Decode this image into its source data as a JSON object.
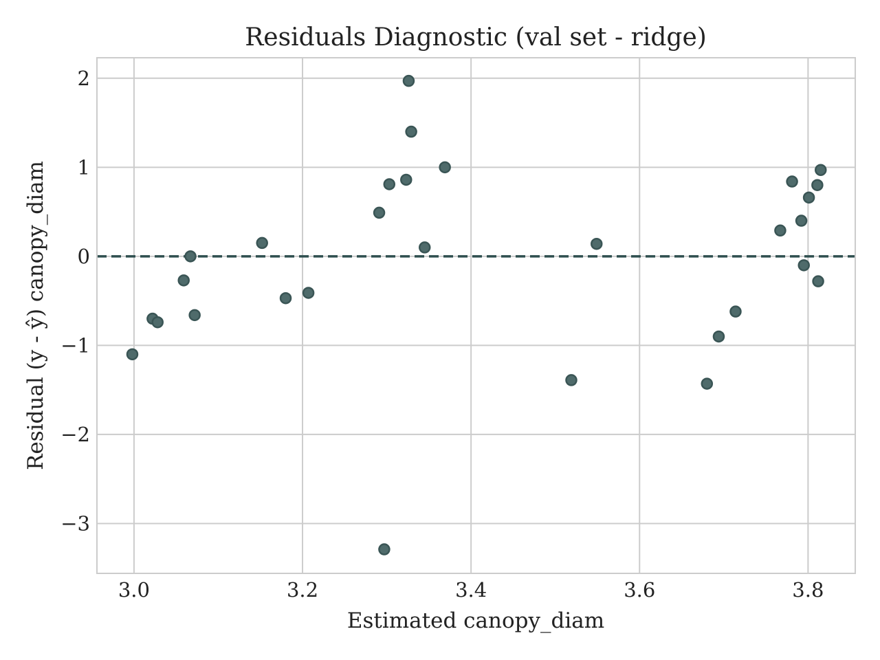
{
  "chart_data": {
    "type": "scatter",
    "title": "Residuals Diagnostic (val set - ridge)",
    "xlabel": "Estimated canopy_diam",
    "ylabel": "Residual (y - ŷ) canopy_diam",
    "xlim": [
      2.956,
      3.856
    ],
    "ylim": [
      -3.56,
      2.23
    ],
    "xticks": [
      3.0,
      3.2,
      3.4,
      3.6,
      3.8
    ],
    "xtick_labels": [
      "3.0",
      "3.2",
      "3.4",
      "3.6",
      "3.8"
    ],
    "yticks": [
      2,
      1,
      0,
      -1,
      -2,
      -3
    ],
    "ytick_labels": [
      "2",
      "1",
      "0",
      "−1",
      "−2",
      "−3"
    ],
    "grid": true,
    "reference_line": {
      "y": 0,
      "style": "dashed",
      "color": "#2f4f4f"
    },
    "marker_color": "#4f6b6b",
    "marker_edge_color": "#3a5555",
    "series": [
      {
        "x": [
          2.998,
          3.022,
          3.028,
          3.059,
          3.067,
          3.072,
          3.152,
          3.18,
          3.207,
          3.291,
          3.303,
          3.323,
          3.326,
          3.329,
          3.345,
          3.369,
          3.297,
          3.519,
          3.549,
          3.68,
          3.694,
          3.714,
          3.767,
          3.781,
          3.792,
          3.795,
          3.801,
          3.811,
          3.812,
          3.815
        ],
        "y": [
          -1.1,
          -0.7,
          -0.74,
          -0.27,
          0.0,
          -0.66,
          0.15,
          -0.47,
          -0.41,
          0.49,
          0.81,
          0.86,
          1.97,
          1.4,
          0.1,
          1.0,
          -3.29,
          -1.39,
          0.14,
          -1.43,
          -0.9,
          -0.62,
          0.29,
          0.84,
          0.4,
          -0.1,
          0.66,
          0.8,
          -0.28,
          0.97
        ]
      }
    ]
  }
}
